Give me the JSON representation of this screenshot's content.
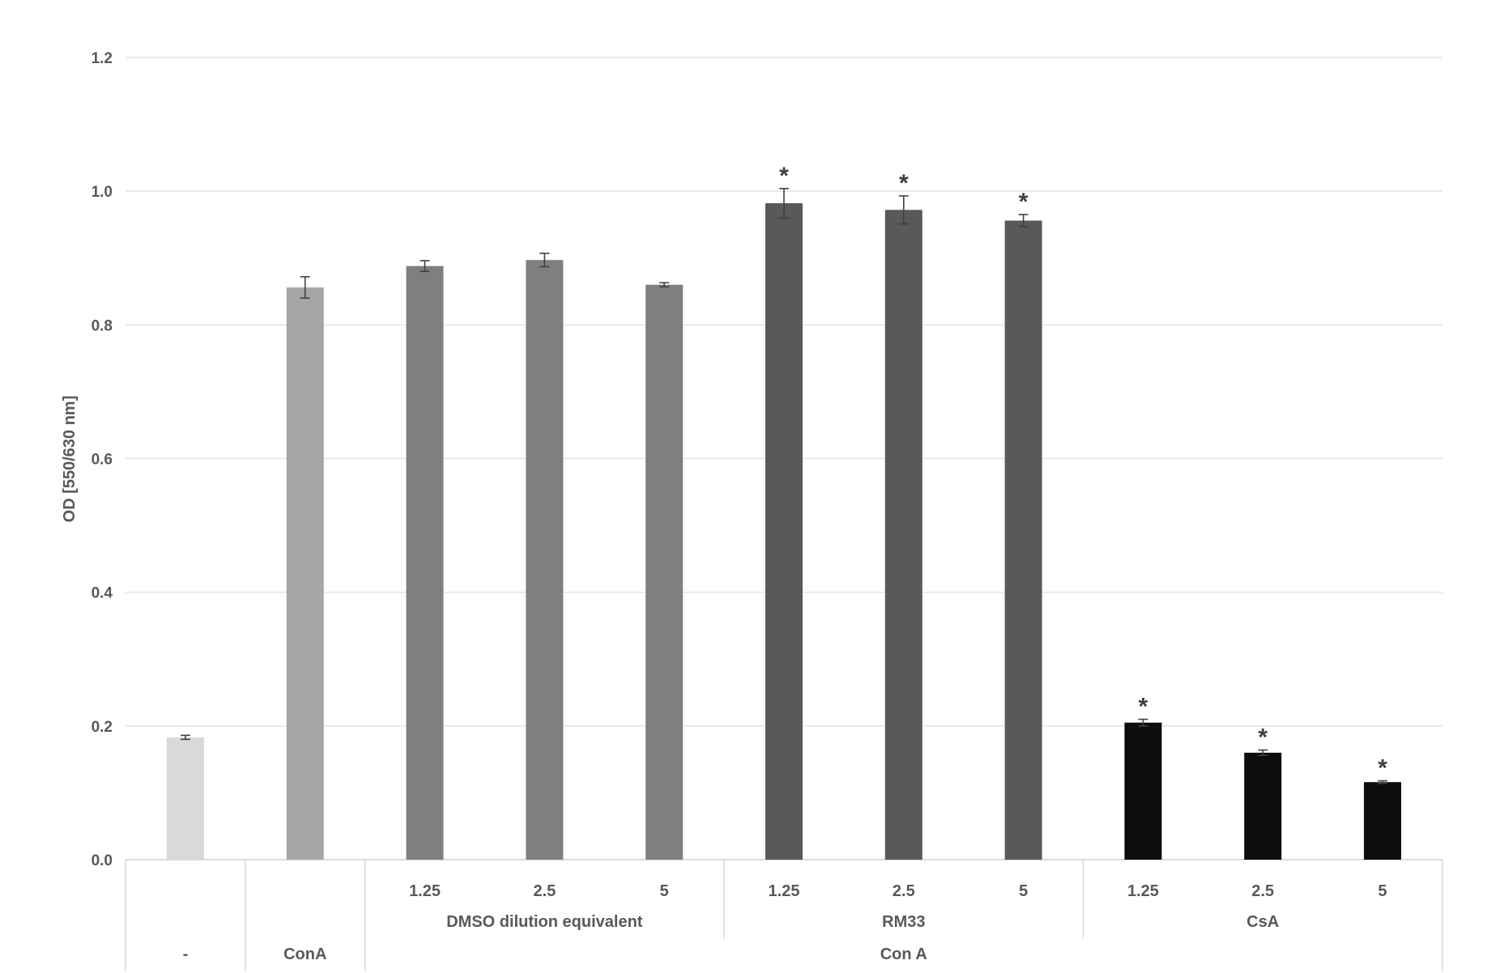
{
  "chart_data": {
    "type": "bar",
    "ylabel": "OD [550/630 nm]",
    "ylim": [
      0,
      1.2
    ],
    "yticks": [
      "0.0",
      "0.2",
      "0.4",
      "0.6",
      "0.8",
      "1.0",
      "1.2"
    ],
    "grid": true,
    "bars": [
      {
        "label": "",
        "value": 0.183,
        "error": 0.003,
        "color": "#d9d9d9",
        "star": false
      },
      {
        "label": "",
        "value": 0.856,
        "error": 0.016,
        "color": "#a6a6a6",
        "star": false
      },
      {
        "label": "1.25",
        "value": 0.888,
        "error": 0.008,
        "color": "#7f7f7f",
        "star": false
      },
      {
        "label": "2.5",
        "value": 0.897,
        "error": 0.01,
        "color": "#7f7f7f",
        "star": false
      },
      {
        "label": "5",
        "value": 0.86,
        "error": 0.003,
        "color": "#7f7f7f",
        "star": false
      },
      {
        "label": "1.25",
        "value": 0.982,
        "error": 0.022,
        "color": "#595959",
        "star": true
      },
      {
        "label": "2.5",
        "value": 0.972,
        "error": 0.021,
        "color": "#595959",
        "star": true
      },
      {
        "label": "5",
        "value": 0.956,
        "error": 0.009,
        "color": "#595959",
        "star": true
      },
      {
        "label": "1.25",
        "value": 0.205,
        "error": 0.005,
        "color": "#0d0d0d",
        "star": true
      },
      {
        "label": "2.5",
        "value": 0.16,
        "error": 0.004,
        "color": "#0d0d0d",
        "star": true
      },
      {
        "label": "5",
        "value": 0.116,
        "error": 0.002,
        "color": "#0d0d0d",
        "star": true
      }
    ],
    "significance_marker": "*",
    "group_labels": [
      {
        "label": "DMSO dilution equivalent",
        "from": 2,
        "to": 4
      },
      {
        "label": "RM33",
        "from": 5,
        "to": 7
      },
      {
        "label": "CsA",
        "from": 8,
        "to": 10
      }
    ],
    "treatment_labels": [
      {
        "label": "-",
        "from": 0,
        "to": 0
      },
      {
        "label": "ConA",
        "from": 1,
        "to": 1
      },
      {
        "label": "Con A",
        "from": 2,
        "to": 10
      }
    ]
  }
}
